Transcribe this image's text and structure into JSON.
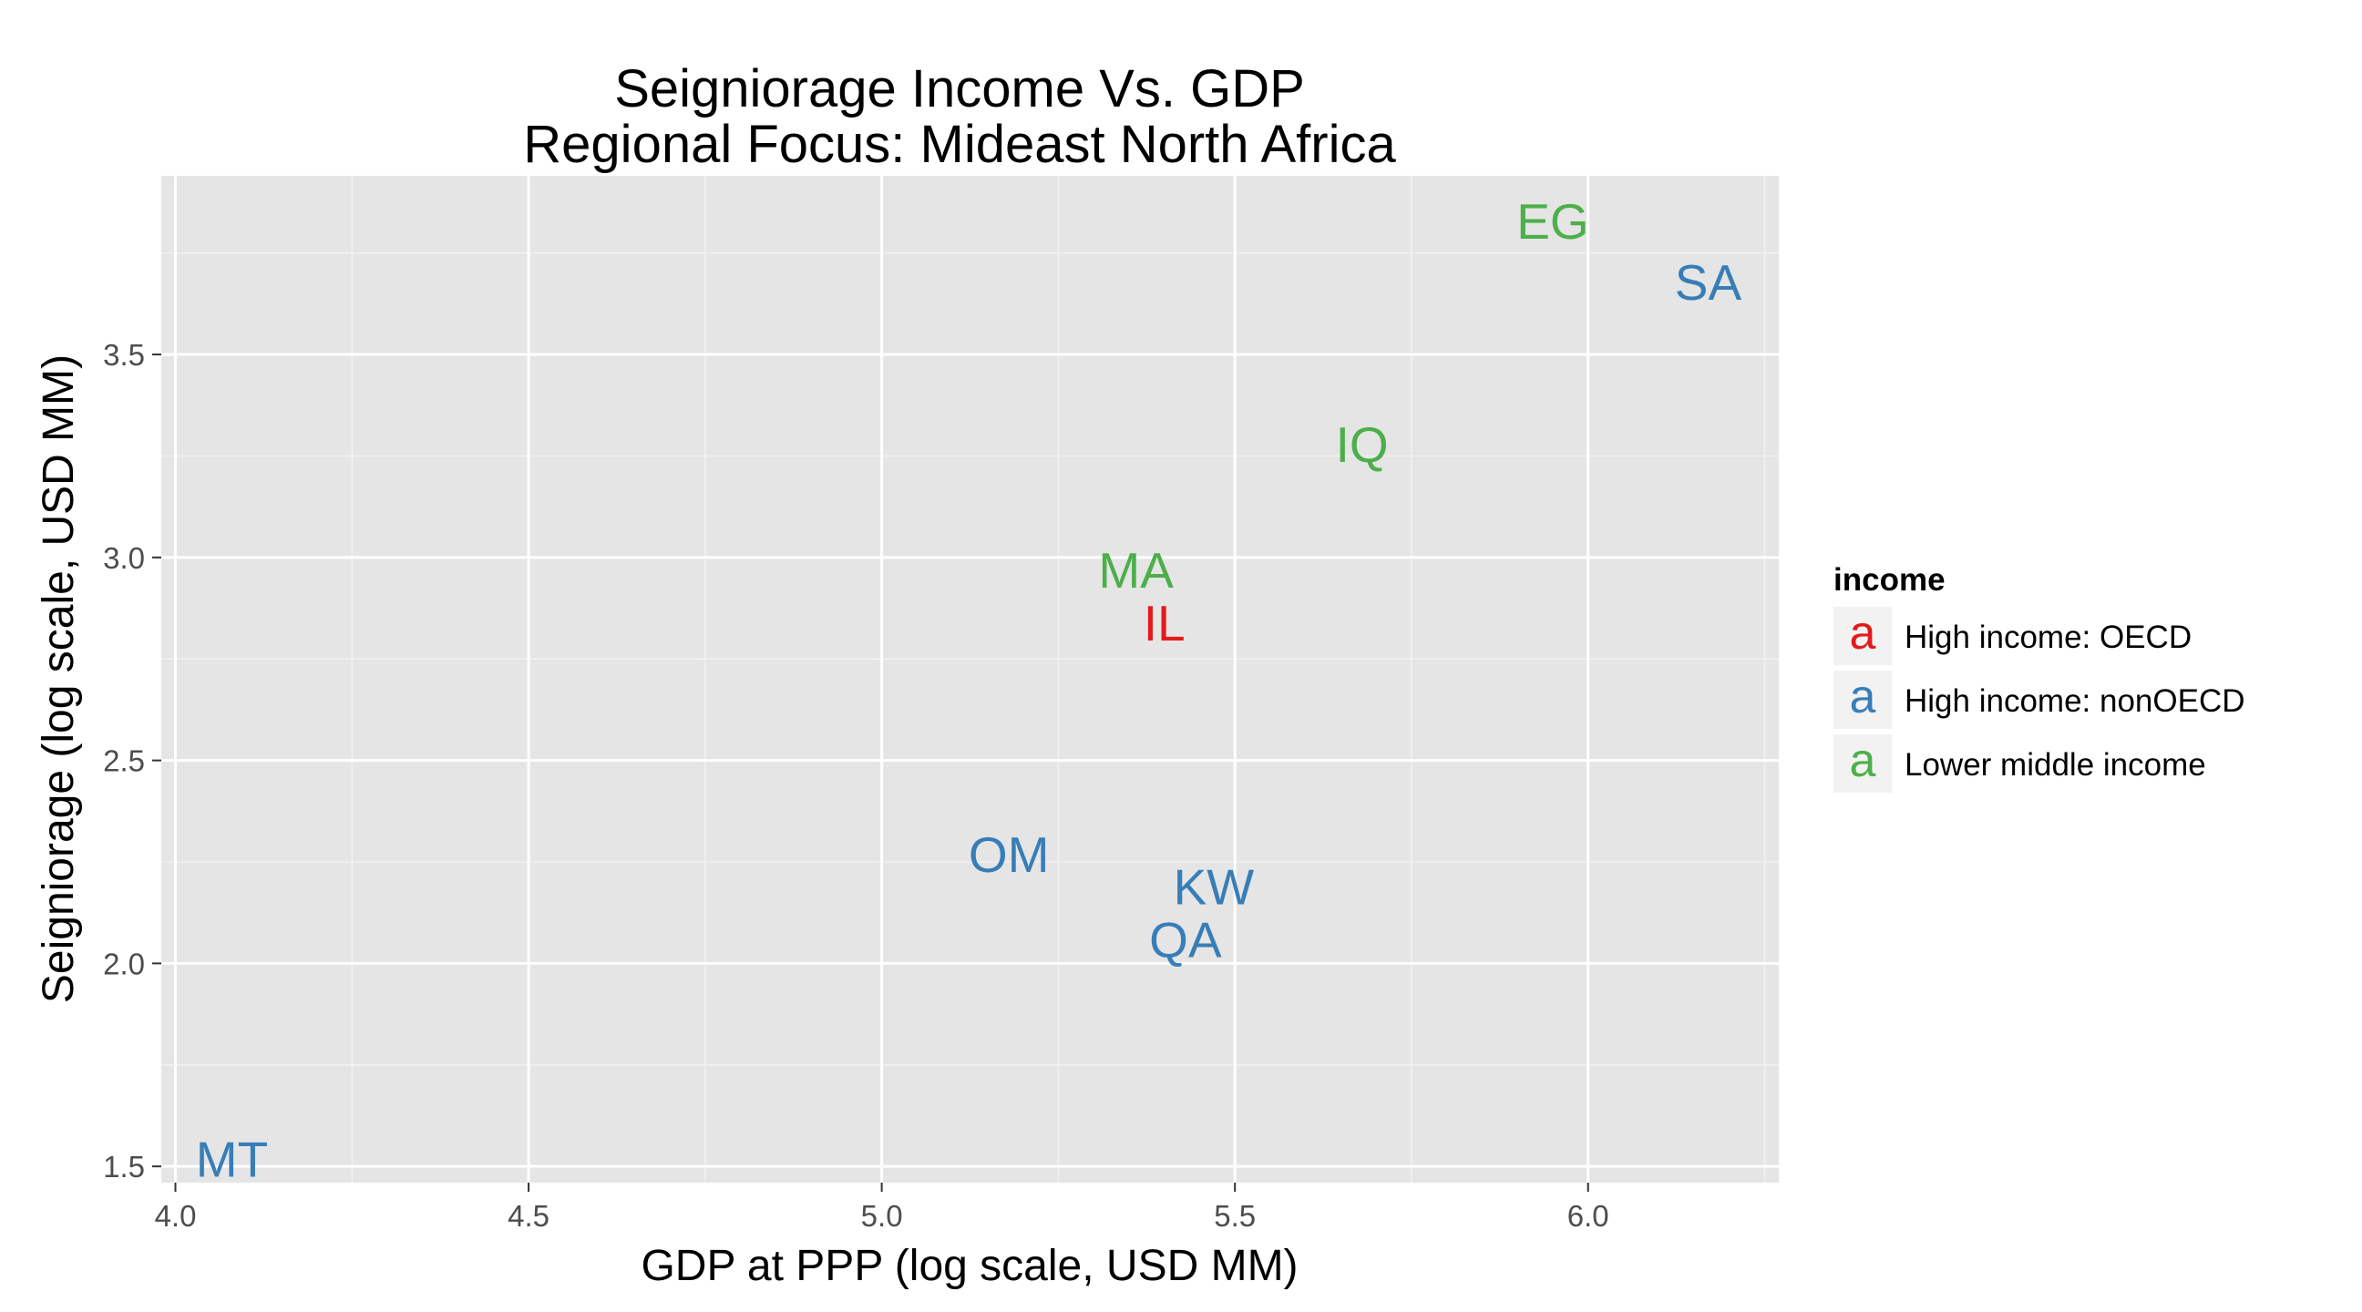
{
  "chart_data": {
    "type": "scatter",
    "title_lines": [
      "Seigniorage Income Vs. GDP",
      "Regional Focus: Mideast North Africa"
    ],
    "xlabel": "GDP at PPP (log scale, USD MM)",
    "ylabel": "Seigniorage (log scale, USD MM)",
    "xlim": [
      3.98,
      6.27
    ],
    "ylim": [
      1.46,
      3.94
    ],
    "x_ticks": [
      4.0,
      4.5,
      5.0,
      5.5,
      6.0
    ],
    "x_tick_labels": [
      "4.0",
      "4.5",
      "5.0",
      "5.5",
      "6.0"
    ],
    "y_ticks": [
      1.5,
      2.0,
      2.5,
      3.0,
      3.5
    ],
    "y_tick_labels": [
      "1.5",
      "2.0",
      "2.5",
      "3.0",
      "3.5"
    ],
    "grid": true,
    "panel_background": "#e5e5e5",
    "legend": {
      "title": "income",
      "position": "right",
      "key_glyph": "a",
      "entries": [
        {
          "label": "High income: OECD",
          "color": "#e41a1c"
        },
        {
          "label": "High income: nonOECD",
          "color": "#377eb8"
        },
        {
          "label": "Lower middle income",
          "color": "#4daf4a"
        }
      ]
    },
    "points": [
      {
        "label": "EG",
        "x": 5.95,
        "y": 3.83,
        "group": "Lower middle income"
      },
      {
        "label": "SA",
        "x": 6.17,
        "y": 3.68,
        "group": "High income: nonOECD"
      },
      {
        "label": "IQ",
        "x": 5.68,
        "y": 3.28,
        "group": "Lower middle income"
      },
      {
        "label": "MA",
        "x": 5.36,
        "y": 2.97,
        "group": "Lower middle income"
      },
      {
        "label": "IL",
        "x": 5.4,
        "y": 2.84,
        "group": "High income: OECD"
      },
      {
        "label": "OM",
        "x": 5.18,
        "y": 2.27,
        "group": "High income: nonOECD"
      },
      {
        "label": "KW",
        "x": 5.47,
        "y": 2.19,
        "group": "High income: nonOECD"
      },
      {
        "label": "QA",
        "x": 5.43,
        "y": 2.06,
        "group": "High income: nonOECD"
      },
      {
        "label": "MT",
        "x": 4.08,
        "y": 1.52,
        "group": "High income: nonOECD"
      }
    ]
  }
}
